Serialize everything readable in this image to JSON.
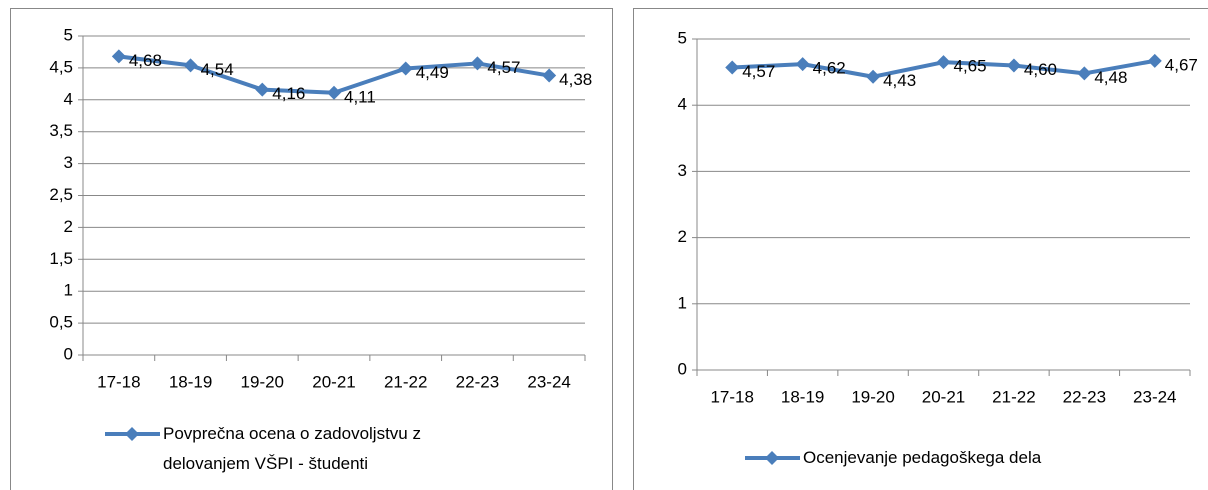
{
  "chart_data": [
    {
      "type": "line",
      "categories": [
        "17-18",
        "18-19",
        "19-20",
        "20-21",
        "21-22",
        "22-23",
        "23-24"
      ],
      "series": [
        {
          "name": "Povprečna ocena o zadovoljstvu z delovanjem VŠPI - študenti",
          "color": "#4a7ebb",
          "values": [
            4.68,
            4.54,
            4.16,
            4.11,
            4.49,
            4.57,
            4.38
          ],
          "value_labels": [
            "4,68",
            "4,54",
            "4,16",
            "4,11",
            "4,49",
            "4,57",
            "4,38"
          ]
        }
      ],
      "ylim": [
        0,
        5
      ],
      "yticks": [
        0,
        {
          "value": 0.5,
          "label": "0,5"
        },
        1,
        {
          "value": 1.5,
          "label": "1,5"
        },
        2,
        {
          "value": 2.5,
          "label": "2,5"
        },
        3,
        {
          "value": 3.5,
          "label": "3,5"
        },
        4,
        {
          "value": 4.5,
          "label": "4,5"
        },
        5
      ],
      "grid": true,
      "legend": "bottom"
    },
    {
      "type": "line",
      "categories": [
        "17-18",
        "18-19",
        "19-20",
        "20-21",
        "21-22",
        "22-23",
        "23-24"
      ],
      "series": [
        {
          "name": "Ocenjevanje pedagoškega dela",
          "color": "#4a7ebb",
          "values": [
            4.57,
            4.62,
            4.43,
            4.65,
            4.6,
            4.48,
            4.67
          ],
          "value_labels": [
            "4,57",
            "4,62",
            "4,43",
            "4,65",
            "4,60",
            "4,48",
            "4,67"
          ]
        }
      ],
      "ylim": [
        0,
        5
      ],
      "yticks": [
        0,
        1,
        2,
        3,
        4,
        5
      ],
      "grid": true,
      "legend": "bottom"
    }
  ]
}
